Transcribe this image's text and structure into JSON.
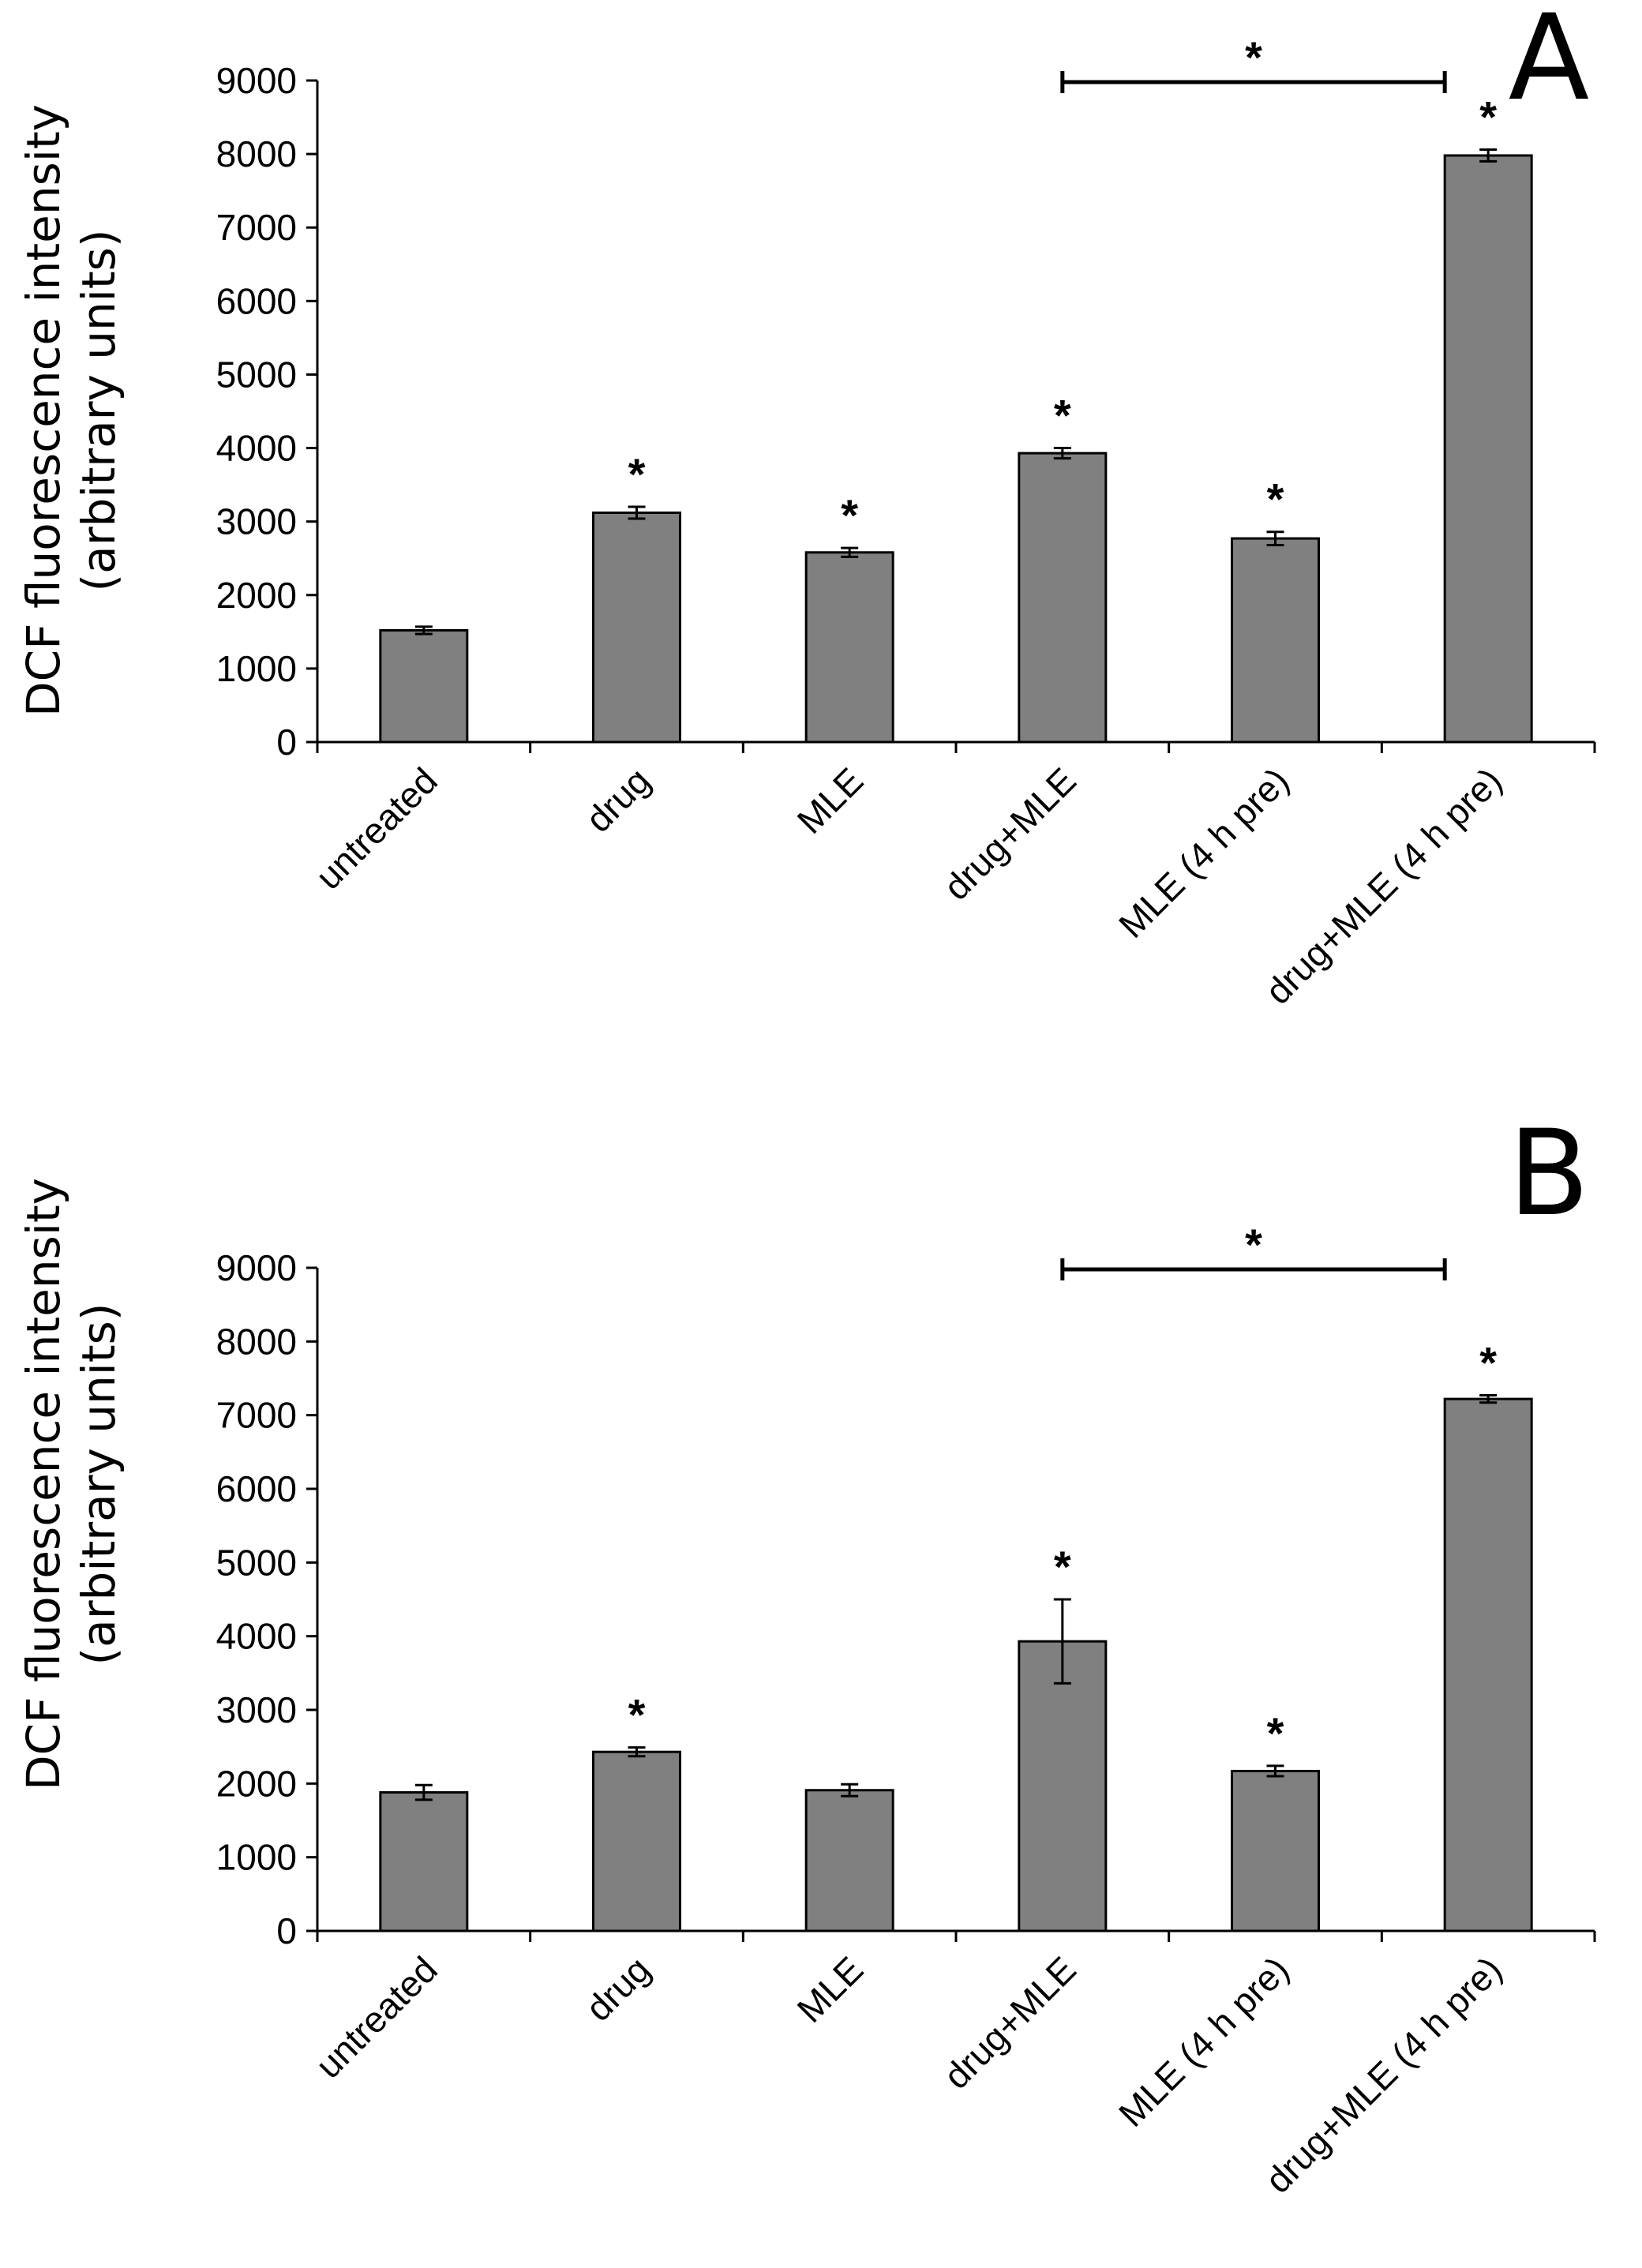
{
  "chart_data": [
    {
      "panel": "A",
      "type": "bar",
      "ylabel_line1": "DCF fluorescence intensity",
      "ylabel_line2": "(arbitrary units)",
      "ylim": [
        0,
        9000
      ],
      "yticks": [
        "0",
        "1000",
        "2000",
        "3000",
        "4000",
        "5000",
        "6000",
        "7000",
        "8000",
        "9000"
      ],
      "categories": [
        "untreated",
        "drug",
        "MLE",
        "drug+MLE",
        "MLE (4 h pre)",
        "drug+MLE (4 h pre)"
      ],
      "values": [
        1520,
        3120,
        2580,
        3930,
        2770,
        7980
      ],
      "errors": [
        50,
        80,
        60,
        70,
        90,
        80
      ],
      "significance": [
        "",
        "*",
        "*",
        "*",
        "*",
        "*"
      ],
      "bracket": {
        "from": "drug+MLE",
        "to": "drug+MLE (4 h pre)",
        "label": "*"
      }
    },
    {
      "panel": "B",
      "type": "bar",
      "ylabel_line1": "DCF fluorescence intensity",
      "ylabel_line2": "(arbitrary units)",
      "ylim": [
        0,
        9000
      ],
      "yticks": [
        "0",
        "1000",
        "2000",
        "3000",
        "4000",
        "5000",
        "6000",
        "7000",
        "8000",
        "9000"
      ],
      "categories": [
        "untreated",
        "drug",
        "MLE",
        "drug+MLE",
        "MLE (4 h pre)",
        "drug+MLE (4 h pre)"
      ],
      "values": [
        1880,
        2430,
        1910,
        3930,
        2170,
        7220
      ],
      "errors": [
        100,
        60,
        80,
        570,
        70,
        50
      ],
      "significance": [
        "",
        "*",
        "",
        "*",
        "*",
        "*"
      ],
      "bracket": {
        "from": "drug+MLE",
        "to": "drug+MLE (4 h pre)",
        "label": "*"
      }
    }
  ],
  "style": {
    "bar_fill": "#808080",
    "bar_stroke": "#000000",
    "axis_color": "#000000"
  }
}
